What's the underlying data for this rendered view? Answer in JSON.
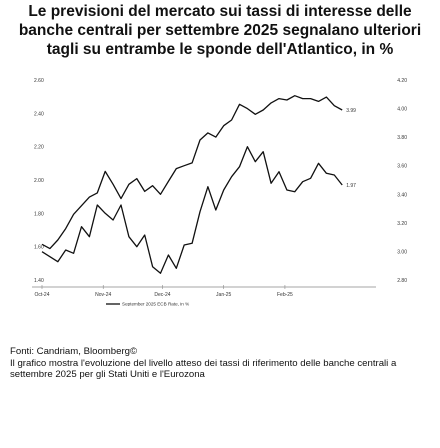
{
  "title": "Le previsioni del mercato sui tassi di interesse delle banche centrali per settembre 2025 segnalano ulteriori tagli su entrambe le sponde dell'Atlantico, in %",
  "footer": {
    "source": "Fonti: Candriam, Bloomberg©",
    "note": "Il grafico mostra l'evoluzione del livello atteso dei tassi di riferimento delle banche centrali a settembre 2025 per gli Stati Uniti e l'Eurozona"
  },
  "chart_data": {
    "type": "line",
    "x_ticks": [
      "Oct-24",
      "Nov-24",
      "Dec-24",
      "Jan-25",
      "Feb-25"
    ],
    "x_range": [
      "2024-10-01",
      "2025-03-10"
    ],
    "left_axis": {
      "ticks": [
        "2.60",
        "2.40",
        "2.20",
        "2.00",
        "1.80",
        "1.60",
        "1.40"
      ],
      "range": [
        1.4,
        2.6
      ]
    },
    "right_axis": {
      "ticks": [
        "4.20",
        "4.00",
        "3.80",
        "3.60",
        "3.40",
        "3.20",
        "3.00",
        "2.80"
      ],
      "range": [
        2.8,
        4.2
      ]
    },
    "series": [
      {
        "name": "September 2025 ECB Rate, in %",
        "axis": "left",
        "color": "#111111",
        "end_label": "1.97",
        "x": [
          "2024-10-01",
          "2024-10-05",
          "2024-10-09",
          "2024-10-13",
          "2024-10-17",
          "2024-10-21",
          "2024-10-25",
          "2024-10-29",
          "2024-11-02",
          "2024-11-06",
          "2024-11-10",
          "2024-11-14",
          "2024-11-18",
          "2024-11-22",
          "2024-11-26",
          "2024-11-30",
          "2024-12-04",
          "2024-12-08",
          "2024-12-12",
          "2024-12-16",
          "2024-12-20",
          "2024-12-24",
          "2024-12-28",
          "2025-01-01",
          "2025-01-05",
          "2025-01-09",
          "2025-01-13",
          "2025-01-17",
          "2025-01-21",
          "2025-01-25",
          "2025-01-29",
          "2025-02-02",
          "2025-02-06",
          "2025-02-10",
          "2025-02-14",
          "2025-02-18",
          "2025-02-22",
          "2025-02-26",
          "2025-03-02"
        ],
        "values": [
          1.57,
          1.54,
          1.51,
          1.58,
          1.56,
          1.72,
          1.66,
          1.85,
          1.8,
          1.76,
          1.85,
          1.66,
          1.6,
          1.67,
          1.48,
          1.44,
          1.55,
          1.47,
          1.61,
          1.62,
          1.81,
          1.96,
          1.82,
          1.94,
          2.02,
          2.08,
          2.2,
          2.11,
          2.17,
          1.98,
          2.05,
          1.94,
          1.93,
          1.99,
          2.01,
          2.1,
          2.04,
          2.03,
          1.97
        ]
      },
      {
        "name": "September 2025 Federal Reserve Funds rate, rhs in %",
        "axis": "right",
        "color": "#111111",
        "end_label": "3.99",
        "x": [
          "2024-10-01",
          "2024-10-05",
          "2024-10-09",
          "2024-10-13",
          "2024-10-17",
          "2024-10-21",
          "2024-10-25",
          "2024-10-29",
          "2024-11-02",
          "2024-11-06",
          "2024-11-10",
          "2024-11-14",
          "2024-11-18",
          "2024-11-22",
          "2024-11-26",
          "2024-11-30",
          "2024-12-04",
          "2024-12-08",
          "2024-12-12",
          "2024-12-16",
          "2024-12-20",
          "2024-12-24",
          "2024-12-28",
          "2025-01-01",
          "2025-01-05",
          "2025-01-09",
          "2025-01-13",
          "2025-01-17",
          "2025-01-21",
          "2025-01-25",
          "2025-01-29",
          "2025-02-02",
          "2025-02-06",
          "2025-02-10",
          "2025-02-14",
          "2025-02-18",
          "2025-02-22",
          "2025-02-26",
          "2025-03-02"
        ],
        "values": [
          3.05,
          3.02,
          3.08,
          3.16,
          3.26,
          3.32,
          3.38,
          3.41,
          3.56,
          3.47,
          3.37,
          3.47,
          3.51,
          3.42,
          3.46,
          3.4,
          3.49,
          3.58,
          3.6,
          3.62,
          3.78,
          3.83,
          3.8,
          3.88,
          3.92,
          4.03,
          4.0,
          3.96,
          3.99,
          4.04,
          4.07,
          4.06,
          4.09,
          4.07,
          4.07,
          4.05,
          4.08,
          4.02,
          3.99
        ]
      }
    ],
    "legend_position": "bottom-center",
    "grid": false
  }
}
